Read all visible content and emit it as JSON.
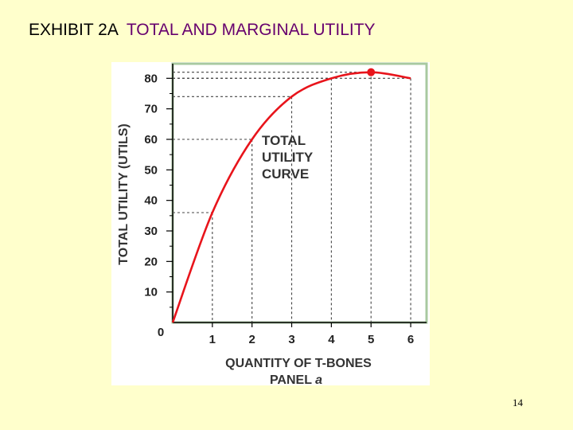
{
  "slide": {
    "exhibit_prefix": "EXHIBIT 2A",
    "title": "TOTAL AND MARGINAL UTILITY",
    "page_number": "14"
  },
  "colors": {
    "background": "#FFFFCC",
    "title_accent": "#66006E",
    "curve": "#E8141B",
    "plot_frame": "#A8C9A0"
  },
  "chart_data": {
    "type": "line",
    "title": "",
    "xlabel": "QUANTITY OF T-BONES",
    "ylabel": "TOTAL UTILITY (UTILS)",
    "panel_label_prefix": "PANEL",
    "panel_label_letter": "a",
    "annotation": [
      "TOTAL",
      "UTILITY",
      "CURVE"
    ],
    "x": [
      0,
      1,
      2,
      3,
      4,
      5,
      6
    ],
    "x_tick_labels": [
      "1",
      "2",
      "3",
      "4",
      "5",
      "6"
    ],
    "y_tick_labels": [
      "10",
      "20",
      "30",
      "40",
      "50",
      "60",
      "70",
      "80"
    ],
    "origin_label": "0",
    "xlim": [
      0,
      6.4
    ],
    "ylim": [
      0,
      84
    ],
    "grid": false,
    "series": [
      {
        "values": [
          0,
          36,
          60,
          74,
          80,
          82,
          80
        ]
      }
    ],
    "highlight": {
      "x": 5,
      "y": 82
    }
  }
}
